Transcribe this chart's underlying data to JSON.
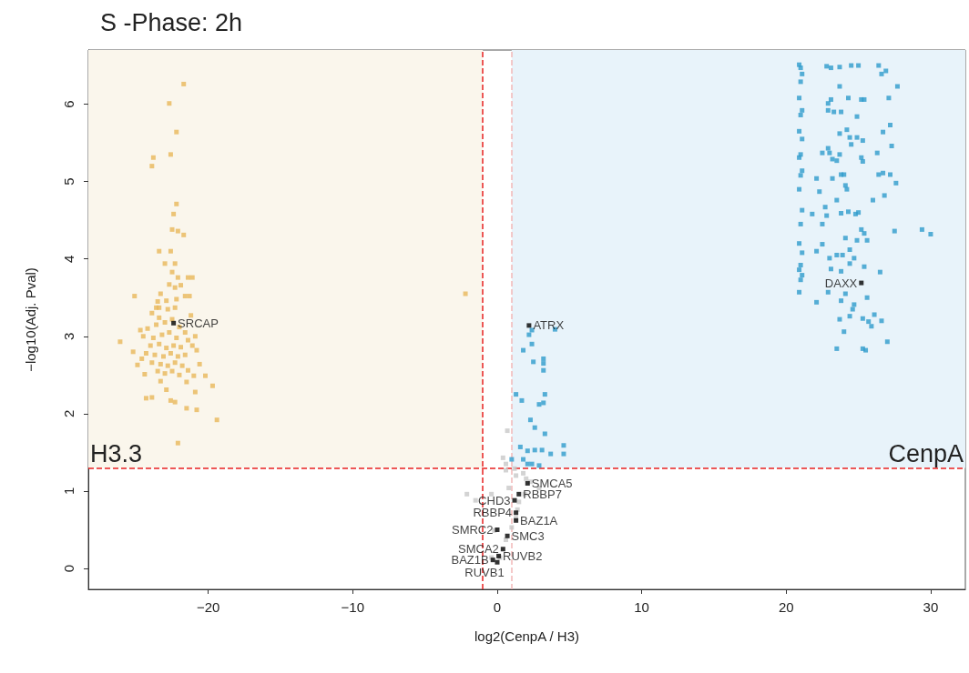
{
  "chart_data": {
    "type": "scatter",
    "title": "S -Phase: 2h",
    "xlabel": "log2(CenpA / H3)",
    "ylabel": "−log10(Adj. Pval)",
    "xlim": [
      -28.3,
      32.4
    ],
    "ylim": [
      -0.27,
      6.7
    ],
    "xticks": [
      {
        "value": -20,
        "label": "−20"
      },
      {
        "value": -10,
        "label": "−10"
      },
      0,
      10,
      20,
      30
    ],
    "yticks": [
      0,
      1,
      2,
      3,
      4,
      5,
      6
    ],
    "grid": false,
    "marker": "square",
    "ref_lines": [
      {
        "axis": "x",
        "value": -1,
        "color": "#e82020",
        "line_style": "dashed"
      },
      {
        "axis": "x",
        "value": 1,
        "color": "#f2b8b8",
        "line_style": "dashed"
      },
      {
        "axis": "y",
        "value": 1.3,
        "color": "#e82020",
        "line_style": "dashed"
      }
    ],
    "bands": [
      {
        "axis": "x",
        "from": -28.3,
        "to": -1,
        "label": "H3.3",
        "color": "#faf6ec"
      },
      {
        "axis": "x",
        "from": 1,
        "to": 32.4,
        "label": "CenpA",
        "color": "#e8f3fa"
      }
    ],
    "series": [
      {
        "color": "#e8b85a",
        "x": [
          -21.7,
          -22.7,
          -22.2,
          -22.6,
          -23.8,
          -23.9,
          -22.2,
          -22.4,
          -22.5,
          -22.1,
          -21.7,
          -23.4,
          -22.6,
          -23.0,
          -22.3,
          -22.5,
          -22.1,
          -21.4,
          -21.1,
          -22.7,
          -22.3,
          -21.9,
          -25.1,
          -23.3,
          -21.6,
          -21.3,
          -23.5,
          -22.9,
          -22.2,
          -23.6,
          -23.4,
          -22.3,
          -23.9,
          -22.8,
          -21.2,
          -24.2,
          -23.6,
          -23.0,
          -22.0,
          -21.6,
          -24.5,
          -23.8,
          -23.2,
          -22.7,
          -22.2,
          -21.4,
          -24.0,
          -23.4,
          -22.9,
          -22.4,
          -21.9,
          -21.1,
          -24.3,
          -23.7,
          -23.1,
          -22.6,
          -22.1,
          -21.6,
          -23.9,
          -23.3,
          -22.8,
          -22.3,
          -21.8,
          -23.5,
          -23.0,
          -22.5,
          -22.0,
          -21.4,
          -24.7,
          -20.9,
          -22.5,
          -23.4,
          -26.1,
          -25.2,
          -20.8,
          -24.9,
          -24.6,
          -20.6,
          -24.4,
          -23.3,
          -20.2,
          -19.7,
          -21.0,
          -21.5,
          -20.9,
          -22.9,
          -24.3,
          -23.9,
          -22.6,
          -22.3,
          -21.5,
          -20.8,
          -19.4,
          -22.1,
          -2.2
        ],
        "values": [
          6.26,
          6.01,
          5.64,
          5.35,
          5.31,
          5.2,
          4.71,
          4.58,
          4.38,
          4.36,
          4.31,
          4.1,
          4.1,
          3.94,
          3.94,
          3.83,
          3.76,
          3.76,
          3.76,
          3.67,
          3.63,
          3.66,
          3.52,
          3.55,
          3.52,
          3.52,
          3.45,
          3.46,
          3.48,
          3.37,
          3.37,
          3.37,
          3.3,
          3.35,
          3.27,
          3.1,
          3.15,
          3.18,
          3.12,
          3.05,
          3.0,
          2.98,
          3.02,
          3.05,
          2.98,
          2.95,
          2.88,
          2.9,
          2.85,
          2.88,
          2.86,
          2.88,
          2.78,
          2.76,
          2.74,
          2.78,
          2.74,
          2.76,
          2.66,
          2.64,
          2.62,
          2.66,
          2.62,
          2.55,
          2.52,
          2.55,
          2.5,
          2.56,
          3.08,
          3.0,
          3.22,
          3.24,
          2.93,
          2.8,
          2.82,
          2.63,
          2.71,
          2.64,
          2.51,
          2.42,
          2.49,
          2.36,
          2.49,
          2.41,
          2.28,
          2.31,
          2.2,
          2.21,
          2.17,
          2.15,
          2.07,
          2.05,
          1.92,
          1.62,
          3.55
        ]
      },
      {
        "color": "#2e9bcc",
        "x": [
          20.9,
          21.0,
          21.1,
          21.0,
          20.9,
          21.1,
          21.0,
          20.9,
          21.1,
          21.0,
          20.9,
          21.1,
          21.0,
          20.9,
          21.1,
          21.0,
          20.9,
          21.1,
          21.0,
          20.9,
          21.1,
          21.0,
          20.9,
          22.8,
          23.1,
          23.7,
          24.5,
          25.0,
          26.4,
          26.9,
          26.6,
          23.7,
          27.7,
          24.3,
          23.1,
          22.9,
          25.2,
          25.4,
          27.1,
          22.9,
          23.3,
          23.8,
          24.9,
          27.2,
          24.2,
          23.7,
          24.4,
          24.9,
          25.3,
          24.5,
          26.7,
          27.3,
          22.5,
          22.9,
          23.0,
          23.7,
          23.2,
          23.5,
          25.2,
          25.3,
          26.3,
          22.1,
          23.2,
          23.8,
          24.0,
          26.4,
          26.7,
          27.2,
          27.6,
          24.1,
          24.2,
          22.3,
          23.5,
          26.0,
          26.8,
          22.7,
          21.8,
          22.8,
          23.8,
          24.3,
          24.8,
          25.0,
          22.5,
          25.2,
          25.4,
          25.6,
          27.5,
          29.4,
          30.0,
          24.1,
          24.9,
          22.5,
          22.1,
          24.4,
          23.0,
          23.5,
          23.9,
          24.7,
          24.4,
          23.1,
          23.8,
          25.4,
          26.5,
          22.9,
          24.1,
          22.1,
          23.8,
          25.6,
          24.7,
          24.6,
          24.4,
          23.7,
          25.3,
          26.1,
          25.7,
          25.9,
          26.6,
          24.0,
          27.0,
          23.5,
          25.3,
          25.5,
          2.4,
          2.2,
          4.0,
          2.4,
          1.8,
          2.5,
          3.2,
          3.2,
          3.2,
          1.3,
          1.7,
          3.3,
          3.2,
          2.9,
          2.3,
          2.6,
          3.3,
          1.6,
          2.1,
          2.6,
          3.1,
          4.6,
          4.6,
          3.7,
          1.0,
          1.8,
          2.1,
          2.9,
          2.4
        ],
        "values": [
          6.51,
          6.47,
          6.39,
          6.29,
          6.08,
          5.92,
          5.86,
          5.65,
          5.55,
          5.35,
          5.31,
          5.14,
          5.08,
          4.9,
          4.63,
          4.45,
          4.2,
          4.08,
          3.92,
          3.86,
          3.79,
          3.73,
          3.57,
          6.49,
          6.47,
          6.48,
          6.5,
          6.5,
          6.5,
          6.43,
          6.39,
          6.23,
          6.23,
          6.08,
          6.06,
          6.01,
          6.06,
          6.06,
          6.08,
          5.92,
          5.9,
          5.9,
          5.84,
          5.73,
          5.67,
          5.62,
          5.57,
          5.57,
          5.53,
          5.48,
          5.64,
          5.46,
          5.37,
          5.43,
          5.37,
          5.35,
          5.29,
          5.27,
          5.31,
          5.26,
          5.37,
          5.04,
          5.04,
          5.09,
          5.09,
          5.09,
          5.11,
          5.09,
          4.98,
          4.95,
          4.9,
          4.87,
          4.76,
          4.76,
          4.82,
          4.67,
          4.58,
          4.56,
          4.59,
          4.61,
          4.58,
          4.6,
          4.45,
          4.38,
          4.33,
          4.24,
          4.36,
          4.38,
          4.32,
          4.27,
          4.24,
          4.19,
          4.1,
          4.12,
          4.01,
          4.05,
          4.05,
          4.01,
          3.94,
          3.87,
          3.84,
          3.9,
          3.83,
          3.57,
          3.55,
          3.44,
          3.46,
          3.5,
          3.41,
          3.35,
          3.26,
          3.22,
          3.23,
          3.28,
          3.19,
          3.13,
          3.2,
          3.06,
          2.93,
          2.84,
          2.84,
          2.82,
          3.08,
          3.02,
          3.09,
          2.9,
          2.82,
          2.67,
          2.71,
          2.65,
          2.56,
          2.25,
          2.17,
          2.25,
          2.14,
          2.12,
          1.92,
          1.82,
          1.74,
          1.57,
          1.52,
          1.53,
          1.53,
          1.59,
          1.48,
          1.48,
          1.41,
          1.41,
          1.35,
          1.33,
          1.35
        ]
      },
      {
        "color": "#c8c8c8",
        "x": [
          0.7,
          0.6,
          0.4,
          1.2,
          1.8,
          2.0,
          2.3,
          2.9,
          1.9,
          1.5,
          1.4,
          1.3,
          1.0,
          0.6,
          0.2,
          -0.4,
          -2.1,
          -1.5,
          0.6,
          1.3,
          0.8,
          -0.2,
          -0.4
        ],
        "values": [
          1.78,
          1.35,
          1.43,
          1.29,
          1.23,
          1.16,
          1.12,
          1.04,
          0.96,
          0.86,
          0.76,
          0.65,
          0.53,
          0.37,
          0.14,
          0.14,
          0.96,
          0.88,
          1.27,
          1.2,
          1.04,
          0.49,
          0.96
        ]
      },
      {
        "color": "#000000",
        "x": [
          -22.4,
          25.2,
          2.2,
          2.1,
          1.5,
          1.2,
          1.3,
          1.3,
          0.0,
          0.7,
          0.4,
          0.1,
          -0.3,
          0.0
        ],
        "values": [
          3.17,
          3.69,
          3.14,
          1.1,
          0.96,
          0.88,
          0.72,
          0.62,
          0.5,
          0.42,
          0.25,
          0.16,
          0.11,
          0.08
        ]
      }
    ],
    "annotations": [
      {
        "text": "SRCAP",
        "x": -22.4,
        "y": 3.17
      },
      {
        "text": "DAXX",
        "x": 25.2,
        "y": 3.69
      },
      {
        "text": "ATRX",
        "x": 2.2,
        "y": 3.14
      },
      {
        "text": "SMCA5",
        "x": 2.1,
        "y": 1.1
      },
      {
        "text": "RBBP7",
        "x": 1.5,
        "y": 0.96
      },
      {
        "text": "CHD3",
        "x": 1.2,
        "y": 0.88
      },
      {
        "text": "RBBP4",
        "x": 1.3,
        "y": 0.72
      },
      {
        "text": "BAZ1A",
        "x": 1.3,
        "y": 0.62
      },
      {
        "text": "SMRC2",
        "x": 0.0,
        "y": 0.5
      },
      {
        "text": "SMC3",
        "x": 0.7,
        "y": 0.42
      },
      {
        "text": "SMCA2",
        "x": 0.4,
        "y": 0.25
      },
      {
        "text": "RUVB2",
        "x": 0.1,
        "y": 0.16
      },
      {
        "text": "BAZ1B",
        "x": -0.3,
        "y": 0.11
      },
      {
        "text": "RUVB1",
        "x": 0.0,
        "y": 0.08
      }
    ]
  }
}
